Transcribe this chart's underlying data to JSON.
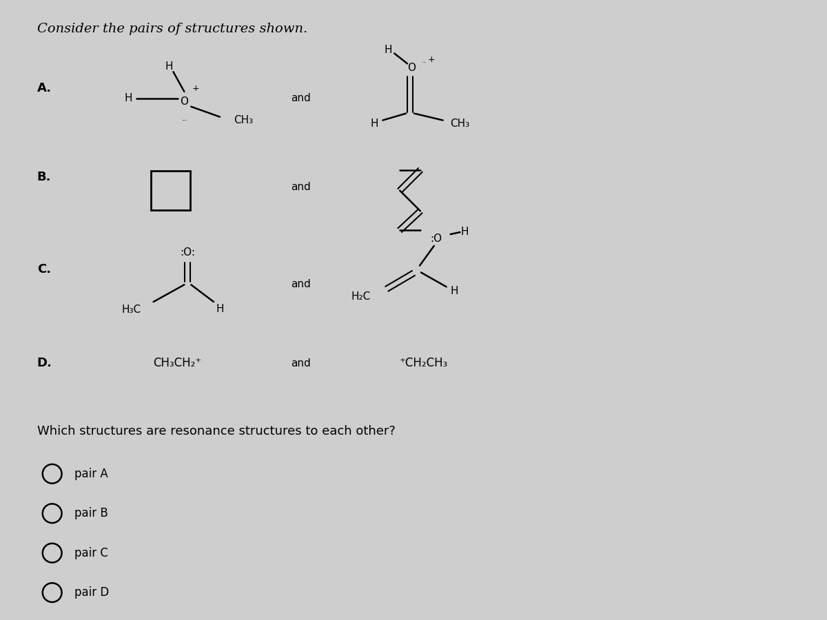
{
  "title": "Consider the pairs of structures shown.",
  "bg_color": "#cecece",
  "question": "Which structures are resonance structures to each other?",
  "options": [
    "pair A",
    "pair B",
    "pair C",
    "pair D"
  ]
}
